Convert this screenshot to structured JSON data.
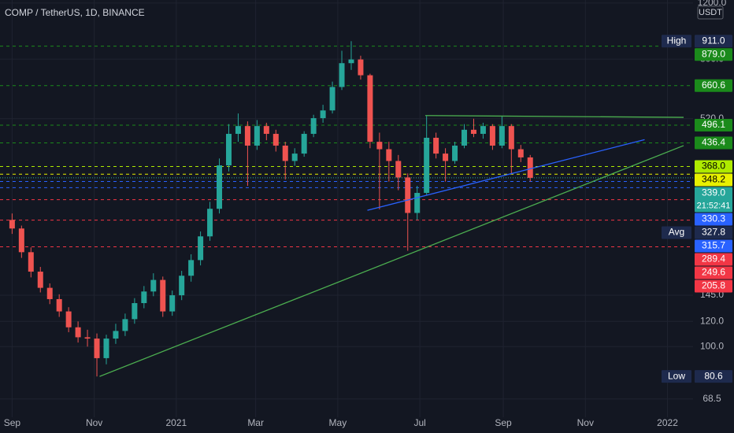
{
  "chart_data": {
    "type": "candlestick",
    "title": "COMP / TetherUS, 1D, BINANCE",
    "currency": "USDT",
    "log_scale": true,
    "grid": true,
    "up_color": "#26a69a",
    "down_color": "#ef5350",
    "xlim": [
      -9,
      506
    ],
    "ylim": [
      60,
      1227
    ],
    "xticks": [
      {
        "value": 0,
        "label": "Sep"
      },
      {
        "value": 61,
        "label": "Nov"
      },
      {
        "value": 122,
        "label": "2021"
      },
      {
        "value": 181,
        "label": "Mar"
      },
      {
        "value": 242,
        "label": "May"
      },
      {
        "value": 303,
        "label": "Jul"
      },
      {
        "value": 365,
        "label": "Sep"
      },
      {
        "value": 426,
        "label": "Nov"
      },
      {
        "value": 487,
        "label": "2022"
      }
    ],
    "yticks": [
      {
        "value": 1200,
        "label": "1200.0"
      },
      {
        "value": 800,
        "label": "800.0"
      },
      {
        "value": 520,
        "label": "520.0"
      },
      {
        "value": 145,
        "label": "145.0"
      },
      {
        "value": 120,
        "label": "120.0"
      },
      {
        "value": 100,
        "label": "100.0"
      },
      68.5
    ],
    "x": [
      0,
      7,
      14,
      21,
      28,
      35,
      42,
      49,
      56,
      63,
      70,
      77,
      84,
      91,
      98,
      105,
      112,
      119,
      126,
      133,
      140,
      147,
      154,
      161,
      168,
      175,
      182,
      189,
      196,
      203,
      210,
      217,
      224,
      231,
      238,
      245,
      252,
      259,
      266,
      273,
      280,
      287,
      294,
      301,
      308,
      315,
      322,
      329,
      336,
      343,
      350,
      357,
      364,
      371,
      378,
      385
    ],
    "open": [
      250,
      235,
      198,
      172,
      153,
      141,
      129,
      115,
      107,
      106,
      92,
      106,
      112,
      122,
      137,
      149,
      162,
      129,
      145,
      167,
      187,
      222,
      271,
      371,
      466,
      493,
      428,
      493,
      466,
      428,
      383,
      404,
      466,
      522,
      552,
      654,
      777,
      798,
      712,
      440,
      417,
      383,
      340,
      263,
      304,
      453,
      404,
      383,
      428,
      480,
      466,
      493,
      428,
      493,
      417,
      393
    ],
    "high": [
      262,
      240,
      205,
      178,
      158,
      146,
      133,
      120,
      113,
      110,
      109,
      118,
      127,
      142,
      155,
      170,
      166,
      150,
      173,
      195,
      230,
      285,
      390,
      500,
      540,
      510,
      515,
      505,
      480,
      440,
      420,
      475,
      535,
      575,
      680,
      850,
      911,
      820,
      720,
      470,
      440,
      400,
      350,
      320,
      530,
      470,
      420,
      440,
      500,
      520,
      505,
      500,
      530,
      500,
      430,
      400
    ],
    "low": [
      226,
      190,
      165,
      148,
      136,
      124,
      111,
      103,
      100,
      80.6,
      88,
      102,
      108,
      118,
      132,
      144,
      124,
      125,
      140,
      160,
      180,
      215,
      262,
      355,
      440,
      320,
      415,
      445,
      410,
      335,
      370,
      395,
      455,
      505,
      540,
      640,
      740,
      690,
      420,
      270,
      330,
      310,
      200,
      250,
      300,
      390,
      330,
      375,
      420,
      455,
      450,
      415,
      420,
      350,
      380,
      330
    ],
    "close": [
      235,
      198,
      172,
      153,
      141,
      129,
      115,
      107,
      106,
      92,
      106,
      112,
      122,
      137,
      149,
      162,
      129,
      145,
      167,
      187,
      222,
      271,
      371,
      466,
      493,
      428,
      493,
      466,
      428,
      383,
      404,
      466,
      522,
      552,
      654,
      777,
      798,
      712,
      440,
      417,
      383,
      340,
      263,
      304,
      453,
      404,
      383,
      428,
      480,
      466,
      493,
      428,
      493,
      417,
      393,
      339
    ],
    "trendlines": [
      {
        "color": "#4caf50",
        "x": [
          65,
          499
        ],
        "y": [
          80.6,
          428
        ]
      },
      {
        "color": "#2962ff",
        "x": [
          264,
          470
        ],
        "y": [
          268,
          447
        ]
      },
      {
        "color": "#4caf50",
        "x": [
          307,
          499
        ],
        "y": [
          532,
          525
        ]
      }
    ],
    "levels": [
      {
        "value": 911.0,
        "label": "911.0",
        "tag": "High",
        "color": "#1e2a4d",
        "text_color": "#ffffff",
        "line": false
      },
      {
        "value": 879.0,
        "label": "879.0",
        "color": "#1b8a1b",
        "text_color": "#ffffff",
        "line": true
      },
      {
        "value": 660.6,
        "label": "660.6",
        "color": "#1b8a1b",
        "text_color": "#ffffff",
        "line": true
      },
      {
        "value": 496.1,
        "label": "496.1",
        "color": "#1b8a1b",
        "text_color": "#ffffff",
        "line": true
      },
      {
        "value": 436.4,
        "label": "436.4",
        "color": "#1b8a1b",
        "text_color": "#ffffff",
        "line": true
      },
      {
        "value": 368.0,
        "label": "368.0",
        "color": "#aeea00",
        "text_color": "#000000",
        "line": true
      },
      {
        "value": 348.2,
        "label": "348.2",
        "color": "#e8f000",
        "text_color": "#000000",
        "line": true
      },
      {
        "value": 339.0,
        "label": "339.0",
        "countdown": "21:52:41",
        "color": "#26a69a",
        "text_color": "#ffffff",
        "line": true
      },
      {
        "value": 330.3,
        "label": "330.3",
        "color": "#2962ff",
        "text_color": "#ffffff",
        "line": true
      },
      {
        "value": 327.8,
        "label": "327.8",
        "tag": "Avg",
        "color": "#1e2a4d",
        "text_color": "#ffffff",
        "line": false
      },
      {
        "value": 315.7,
        "label": "315.7",
        "color": "#2962ff",
        "text_color": "#ffffff",
        "line": true
      },
      {
        "value": 289.4,
        "label": "289.4",
        "color": "#f23645",
        "text_color": "#ffffff",
        "line": true
      },
      {
        "value": 249.6,
        "label": "249.6",
        "color": "#f23645",
        "text_color": "#ffffff",
        "line": true
      },
      {
        "value": 205.8,
        "label": "205.8",
        "color": "#f23645",
        "text_color": "#ffffff",
        "line": true
      },
      {
        "value": 80.6,
        "label": "80.6",
        "tag": "Low",
        "color": "#1e2a4d",
        "text_color": "#ffffff",
        "line": false
      }
    ]
  }
}
